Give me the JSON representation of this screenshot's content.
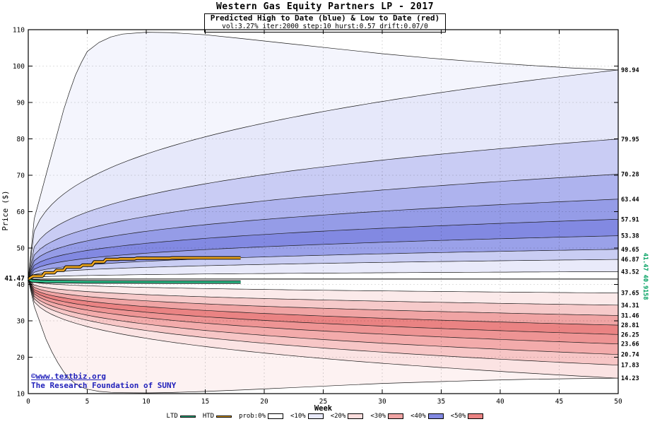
{
  "watermark": {
    "line1": "©www.textbiz.org",
    "line2": "The Research Foundation of SUNY",
    "color": "#2222bb"
  },
  "chart_data": {
    "type": "area",
    "title": "Western Gas Equity Partners LP - 2017",
    "subtitle": "Predicted High to Date (blue) &  Low to Date (red)",
    "params_line": "vol:3.27% iter:2000 step:10 hurst:0.57 drift:0.07/0",
    "xlabel": "Week",
    "ylabel": "Price ($)",
    "xlim": [
      0,
      50
    ],
    "ylim": [
      10,
      110
    ],
    "x_ticks": [
      0,
      5,
      10,
      15,
      20,
      25,
      30,
      35,
      40,
      45,
      50
    ],
    "y_ticks": [
      10,
      20,
      30,
      40,
      50,
      60,
      70,
      80,
      90,
      100,
      110
    ],
    "grid": true,
    "legend_position": "bottom",
    "start_value": 41.47,
    "start_label": "41.47",
    "exponent": 0.32,
    "upper_bands": {
      "ends": [
        43.52,
        46.87,
        49.65,
        53.38,
        57.91,
        63.44,
        70.28,
        79.95,
        98.94
      ],
      "fills": [
        "#ffffff",
        "#e9eafa",
        "#c9cdf3",
        "#9aa1e9",
        "#8289e2",
        "#959ce7",
        "#aeb3ee",
        "#c9ccf4",
        "#e6e8fa"
      ],
      "outer_fill": "#f4f5fd"
    },
    "lower_bands": {
      "ends": [
        37.65,
        34.31,
        31.46,
        28.81,
        26.25,
        23.66,
        20.74,
        17.83,
        14.23
      ],
      "fills": [
        "#ffffff",
        "#fbeaea",
        "#f6caca",
        "#f0a4a4",
        "#ea8383",
        "#ee9494",
        "#f3abab",
        "#f7c6c6",
        "#fbe3e3"
      ],
      "outer_fill": "#fdf2f2"
    },
    "outer_high": [
      [
        0,
        41.47
      ],
      [
        0.5,
        58
      ],
      [
        1,
        64
      ],
      [
        1.5,
        70
      ],
      [
        2,
        76
      ],
      [
        2.5,
        82
      ],
      [
        3,
        88
      ],
      [
        3.5,
        93
      ],
      [
        4,
        97.5
      ],
      [
        4.5,
        101
      ],
      [
        5,
        104
      ],
      [
        6,
        106.5
      ],
      [
        7,
        108
      ],
      [
        8,
        108.8
      ],
      [
        10,
        109.3
      ],
      [
        12,
        109.2
      ],
      [
        15,
        108.6
      ],
      [
        18,
        107.6
      ],
      [
        22,
        106.2
      ],
      [
        26,
        104.8
      ],
      [
        30,
        103.4
      ],
      [
        34,
        102.2
      ],
      [
        38,
        101.2
      ],
      [
        42,
        100.3
      ],
      [
        46,
        99.5
      ],
      [
        50,
        98.94
      ]
    ],
    "outer_low": [
      [
        0,
        41.47
      ],
      [
        0.5,
        34
      ],
      [
        1,
        29.5
      ],
      [
        1.5,
        25
      ],
      [
        2,
        21.5
      ],
      [
        2.5,
        18.5
      ],
      [
        3,
        16
      ],
      [
        3.5,
        14
      ],
      [
        4,
        12.7
      ],
      [
        4.5,
        11.8
      ],
      [
        5,
        11.2
      ],
      [
        6,
        10.6
      ],
      [
        7,
        10.35
      ],
      [
        8,
        10.25
      ],
      [
        10,
        10.2
      ],
      [
        12,
        10.3
      ],
      [
        15,
        10.6
      ],
      [
        18,
        11
      ],
      [
        22,
        11.6
      ],
      [
        26,
        12.2
      ],
      [
        30,
        12.8
      ],
      [
        34,
        13.2
      ],
      [
        38,
        13.6
      ],
      [
        42,
        13.9
      ],
      [
        46,
        14.1
      ],
      [
        50,
        14.23
      ]
    ],
    "right_labels_upper": [
      "98.94",
      "79.95",
      "70.28",
      "63.44",
      "57.91",
      "53.38",
      "49.65",
      "46.87",
      "43.52"
    ],
    "right_labels_lower": [
      "37.65",
      "34.31",
      "31.46",
      "28.81",
      "26.25",
      "23.66",
      "20.74",
      "17.83",
      "14.23"
    ],
    "right_green_label": "41.47 40.9158",
    "median_value": 41.47,
    "htd": {
      "name": "HTD",
      "color": "#efa820",
      "points": [
        [
          0,
          41.47
        ],
        [
          0.4,
          42.3
        ],
        [
          1.2,
          42.3
        ],
        [
          1.4,
          43.2
        ],
        [
          2.2,
          43.2
        ],
        [
          2.4,
          43.9
        ],
        [
          3.0,
          43.9
        ],
        [
          3.2,
          44.8
        ],
        [
          4.4,
          44.8
        ],
        [
          4.6,
          45.3
        ],
        [
          5.4,
          45.3
        ],
        [
          5.6,
          46.2
        ],
        [
          6.4,
          46.2
        ],
        [
          6.6,
          46.9
        ],
        [
          7.6,
          46.9
        ],
        [
          7.8,
          47.0
        ],
        [
          9,
          47.0
        ],
        [
          9.2,
          47.2
        ],
        [
          12,
          47.2
        ],
        [
          12.2,
          47.3
        ],
        [
          18,
          47.3
        ]
      ]
    },
    "ltd": {
      "name": "LTD",
      "color": "#2ec48e",
      "points": [
        [
          0,
          41.47
        ],
        [
          0.3,
          41.0
        ],
        [
          1,
          40.85
        ],
        [
          2,
          40.8
        ],
        [
          3,
          40.75
        ],
        [
          5,
          40.7
        ],
        [
          8,
          40.68
        ],
        [
          12,
          40.65
        ],
        [
          15,
          40.65
        ],
        [
          18,
          40.65
        ]
      ]
    },
    "legend": [
      {
        "label": "LTD",
        "type": "line",
        "color": "#2ec48e"
      },
      {
        "label": "HTD",
        "type": "line",
        "color": "#efa820"
      },
      {
        "label": "prob:0%",
        "type": "box",
        "color": "#ffffff"
      },
      {
        "label": "<10%",
        "type": "box",
        "color": "#e9eafa"
      },
      {
        "label": "<20%",
        "type": "box",
        "color": "#fbdede"
      },
      {
        "label": "<30%",
        "type": "box",
        "color": "#f0a4a4"
      },
      {
        "label": "<40%",
        "type": "box",
        "color": "#8289e2"
      },
      {
        "label": "<50%",
        "type": "box",
        "color": "#ea8383"
      }
    ]
  }
}
